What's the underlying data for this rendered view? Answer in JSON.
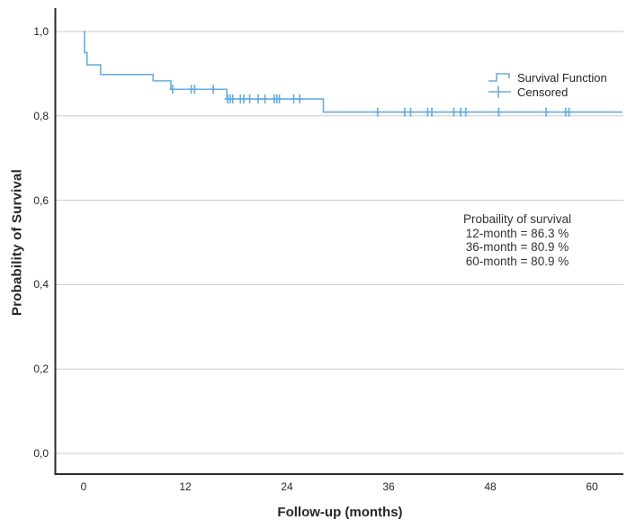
{
  "figure": {
    "background": "#ffffff"
  },
  "y_axis": {
    "label": "Probability of Survival",
    "ticks": [
      {
        "label": "1,0",
        "value": 1.0
      },
      {
        "label": "0,8",
        "value": 0.8
      },
      {
        "label": "0,6",
        "value": 0.6
      },
      {
        "label": "0,4",
        "value": 0.4
      },
      {
        "label": "0,2",
        "value": 0.2
      },
      {
        "label": "0,0",
        "value": 0.0
      }
    ]
  },
  "x_axis": {
    "label": "Follow-up (months)",
    "ticks": [
      {
        "label": "0",
        "value": 0
      },
      {
        "label": "12",
        "value": 12
      },
      {
        "label": "24",
        "value": 24
      },
      {
        "label": "36",
        "value": 36
      },
      {
        "label": "48",
        "value": 48
      },
      {
        "label": "60",
        "value": 60
      }
    ]
  },
  "legend": {
    "items": [
      {
        "label": "Survival Function",
        "symbol": "step-line-icon"
      },
      {
        "label": "Censored",
        "symbol": "plus-icon"
      }
    ]
  },
  "annotation": {
    "lines": [
      "Probaility of survival",
      "12-month = 86.3 %",
      "36-month = 80.9 %",
      "60-month = 80.9 %"
    ]
  },
  "chart_data": {
    "type": "line",
    "subtype": "kaplan-meier-step-function",
    "title": "",
    "xlabel": "Follow-up (months)",
    "ylabel": "Probability of Survival",
    "xlim": [
      -3.3,
      63.7
    ],
    "ylim": [
      -0.05,
      1.055
    ],
    "x_ticks": [
      0,
      12,
      24,
      36,
      48,
      60
    ],
    "y_ticks": [
      0.0,
      0.2,
      0.4,
      0.6,
      0.8,
      1.0
    ],
    "grid": "horizontal",
    "legend_position": "upper right",
    "colors": {
      "curve": "#69aedd",
      "gridline": "#c8c8c8",
      "axis": "#2b2b2b",
      "text": "#262626"
    },
    "series": [
      {
        "name": "Survival Function",
        "type": "step",
        "color": "#69aedd",
        "steps": [
          [
            0.0,
            1.0
          ],
          [
            0.1,
            0.95
          ],
          [
            0.4,
            0.921
          ],
          [
            2.0,
            0.898
          ],
          [
            8.2,
            0.883
          ],
          [
            10.3,
            0.863
          ],
          [
            16.9,
            0.84
          ],
          [
            28.3,
            0.809
          ]
        ],
        "end_x": 63.6
      }
    ],
    "censored": {
      "name": "Censored",
      "color": "#69aedd",
      "points": [
        [
          10.5,
          0.863
        ],
        [
          12.7,
          0.863
        ],
        [
          13.1,
          0.863
        ],
        [
          15.3,
          0.863
        ],
        [
          17.0,
          0.84
        ],
        [
          17.3,
          0.84
        ],
        [
          17.6,
          0.84
        ],
        [
          18.5,
          0.84
        ],
        [
          18.9,
          0.84
        ],
        [
          19.6,
          0.84
        ],
        [
          20.6,
          0.84
        ],
        [
          21.4,
          0.84
        ],
        [
          22.5,
          0.84
        ],
        [
          22.8,
          0.84
        ],
        [
          23.1,
          0.84
        ],
        [
          24.8,
          0.84
        ],
        [
          25.5,
          0.84
        ],
        [
          34.7,
          0.809
        ],
        [
          37.9,
          0.809
        ],
        [
          38.6,
          0.809
        ],
        [
          40.6,
          0.809
        ],
        [
          41.1,
          0.809
        ],
        [
          43.7,
          0.809
        ],
        [
          44.5,
          0.809
        ],
        [
          45.1,
          0.809
        ],
        [
          49.0,
          0.809
        ],
        [
          54.6,
          0.809
        ],
        [
          56.9,
          0.809
        ],
        [
          57.3,
          0.809
        ]
      ]
    },
    "key_values": {
      "12_month_survival": "86.3 %",
      "36_month_survival": "80.9 %",
      "60_month_survival": "80.9 %"
    }
  }
}
